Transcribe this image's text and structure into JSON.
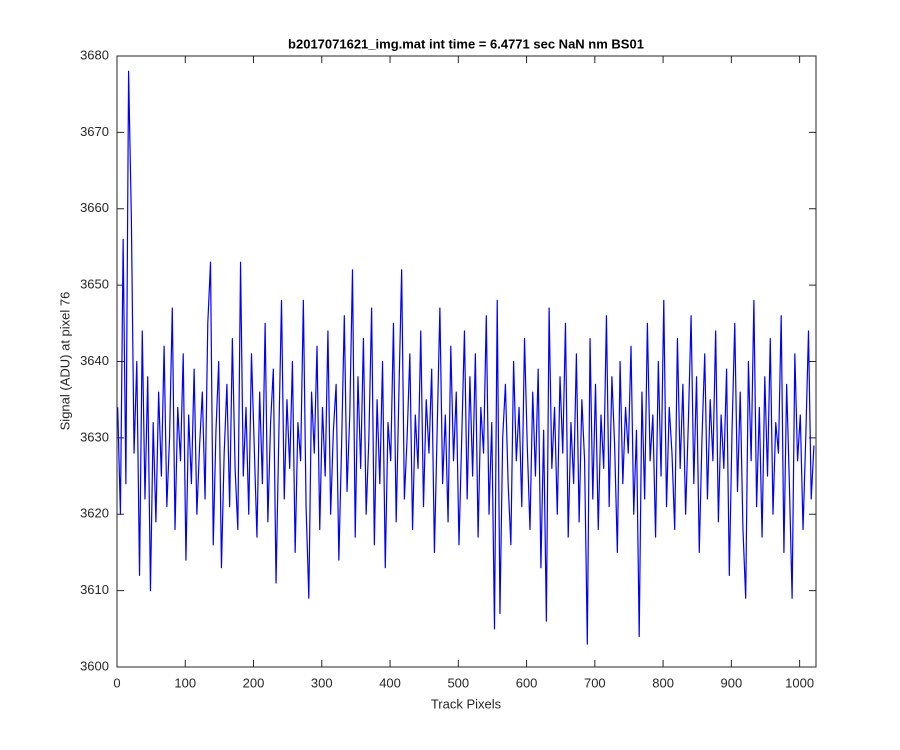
{
  "chart_data": {
    "type": "line",
    "title": "b2017071621_img.mat int time = 6.4771 sec  NaN nm BS01",
    "xlabel": "Track Pixels",
    "ylabel": "Signal (ADU) at pixel 76",
    "xlim": [
      0,
      1024
    ],
    "ylim": [
      3600,
      3680
    ],
    "xticks": [
      0,
      100,
      200,
      300,
      400,
      500,
      600,
      700,
      800,
      900,
      1000
    ],
    "yticks": [
      3600,
      3610,
      3620,
      3630,
      3640,
      3650,
      3660,
      3670,
      3680
    ],
    "grid": false,
    "x": [
      1,
      5,
      9,
      13,
      17,
      21,
      25,
      29,
      33,
      37,
      41,
      45,
      49,
      53,
      57,
      61,
      65,
      69,
      73,
      77,
      81,
      85,
      89,
      93,
      97,
      101,
      105,
      109,
      113,
      117,
      121,
      125,
      129,
      133,
      137,
      141,
      145,
      149,
      153,
      157,
      161,
      165,
      169,
      173,
      177,
      181,
      185,
      189,
      193,
      197,
      201,
      205,
      209,
      213,
      217,
      221,
      225,
      229,
      233,
      237,
      241,
      245,
      249,
      253,
      257,
      261,
      265,
      269,
      273,
      277,
      281,
      285,
      289,
      293,
      297,
      301,
      305,
      309,
      313,
      317,
      321,
      325,
      329,
      333,
      337,
      341,
      345,
      349,
      353,
      357,
      361,
      365,
      369,
      373,
      377,
      381,
      385,
      389,
      393,
      397,
      401,
      405,
      409,
      413,
      417,
      421,
      425,
      429,
      433,
      437,
      441,
      445,
      449,
      453,
      457,
      461,
      465,
      469,
      473,
      477,
      481,
      485,
      489,
      493,
      497,
      501,
      505,
      509,
      513,
      517,
      521,
      525,
      529,
      533,
      537,
      541,
      545,
      549,
      553,
      557,
      561,
      565,
      569,
      573,
      577,
      581,
      585,
      589,
      593,
      597,
      601,
      605,
      609,
      613,
      617,
      621,
      625,
      629,
      633,
      637,
      641,
      645,
      649,
      653,
      657,
      661,
      665,
      669,
      673,
      677,
      681,
      685,
      689,
      693,
      697,
      701,
      705,
      709,
      713,
      717,
      721,
      725,
      729,
      733,
      737,
      741,
      745,
      749,
      753,
      757,
      761,
      765,
      769,
      773,
      777,
      781,
      785,
      789,
      793,
      797,
      801,
      805,
      809,
      813,
      817,
      821,
      825,
      829,
      833,
      837,
      841,
      845,
      849,
      853,
      857,
      861,
      865,
      869,
      873,
      877,
      881,
      885,
      889,
      893,
      897,
      901,
      905,
      909,
      913,
      917,
      921,
      925,
      929,
      933,
      937,
      941,
      945,
      949,
      953,
      957,
      961,
      965,
      969,
      973,
      977,
      981,
      985,
      989,
      993,
      997,
      1001,
      1005,
      1009,
      1013,
      1017,
      1021
    ],
    "series": [
      {
        "color": "#0000ff",
        "values": [
          3634,
          3620,
          3656,
          3624,
          3678,
          3659,
          3628,
          3640,
          3612,
          3644,
          3622,
          3638,
          3610,
          3632,
          3619,
          3636,
          3625,
          3642,
          3621,
          3630,
          3647,
          3618,
          3634,
          3627,
          3641,
          3614,
          3633,
          3624,
          3639,
          3620,
          3629,
          3636,
          3622,
          3645,
          3653,
          3616,
          3631,
          3640,
          3613,
          3628,
          3637,
          3621,
          3643,
          3626,
          3618,
          3653,
          3625,
          3634,
          3620,
          3641,
          3629,
          3617,
          3636,
          3624,
          3645,
          3619,
          3632,
          3639,
          3611,
          3630,
          3648,
          3622,
          3635,
          3626,
          3640,
          3615,
          3632,
          3627,
          3648,
          3621,
          3609,
          3636,
          3628,
          3642,
          3618,
          3634,
          3625,
          3644,
          3620,
          3631,
          3637,
          3614,
          3629,
          3646,
          3623,
          3633,
          3652,
          3617,
          3638,
          3626,
          3643,
          3620,
          3630,
          3647,
          3616,
          3635,
          3624,
          3640,
          3613,
          3632,
          3627,
          3645,
          3619,
          3636,
          3652,
          3622,
          3630,
          3641,
          3618,
          3633,
          3626,
          3644,
          3621,
          3635,
          3628,
          3639,
          3615,
          3631,
          3647,
          3624,
          3633,
          3619,
          3642,
          3627,
          3636,
          3616,
          3630,
          3644,
          3622,
          3638,
          3625,
          3641,
          3617,
          3634,
          3628,
          3646,
          3620,
          3632,
          3605,
          3648,
          3607,
          3630,
          3637,
          3624,
          3616,
          3640,
          3627,
          3634,
          3621,
          3643,
          3629,
          3618,
          3636,
          3625,
          3639,
          3613,
          3631,
          3606,
          3647,
          3626,
          3634,
          3620,
          3638,
          3628,
          3645,
          3617,
          3632,
          3624,
          3641,
          3619,
          3635,
          3627,
          3603,
          3643,
          3622,
          3637,
          3618,
          3633,
          3626,
          3646,
          3621,
          3638,
          3629,
          3615,
          3640,
          3624,
          3634,
          3628,
          3642,
          3620,
          3631,
          3604,
          3636,
          3622,
          3645,
          3627,
          3633,
          3617,
          3640,
          3625,
          3648,
          3621,
          3634,
          3628,
          3618,
          3643,
          3626,
          3637,
          3620,
          3632,
          3646,
          3624,
          3638,
          3615,
          3630,
          3641,
          3622,
          3635,
          3627,
          3644,
          3619,
          3633,
          3626,
          3639,
          3612,
          3631,
          3645,
          3623,
          3636,
          3618,
          3609,
          3640,
          3627,
          3648,
          3621,
          3634,
          3617,
          3638,
          3625,
          3643,
          3620,
          3632,
          3628,
          3646,
          3615,
          3637,
          3624,
          3609,
          3641,
          3627,
          3633,
          3618,
          3630,
          3644,
          3622,
          3629
        ]
      }
    ]
  }
}
